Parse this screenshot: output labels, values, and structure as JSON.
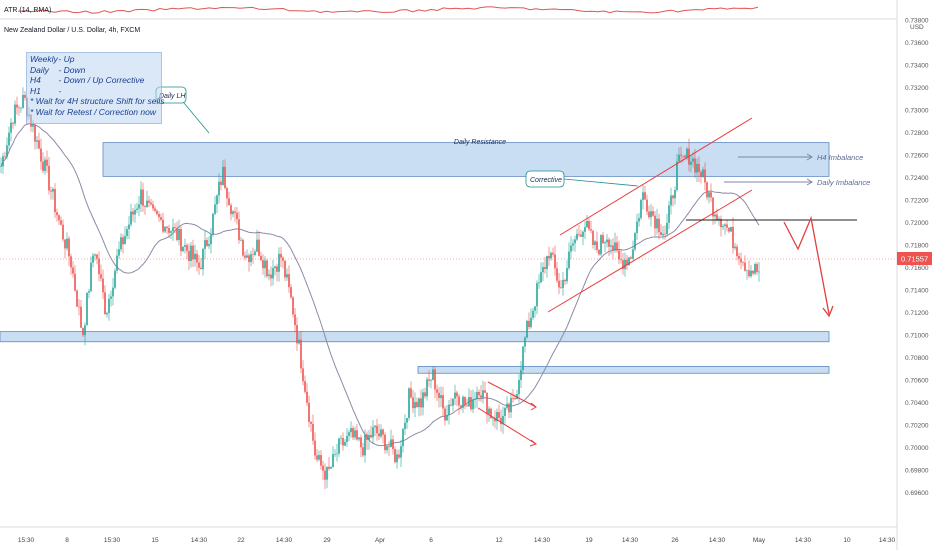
{
  "header": {
    "atr_label": "ATR (14, RMA)",
    "title": "New Zealand Dollar / U.S. Dollar, 4h, FXCM",
    "currency": "USD"
  },
  "notes": {
    "lines": [
      {
        "key": "Weekly",
        "value": "- Up"
      },
      {
        "key": "Daily",
        "value": "- Down"
      },
      {
        "key": "H4",
        "value": "- Down / Up Corrective"
      },
      {
        "key": "H1",
        "value": "-"
      }
    ],
    "bullets": [
      "Wait for 4H structure Shift for sells",
      "Wait for Retest / Correction now"
    ]
  },
  "labels": {
    "daily_lh": "Daily LH",
    "daily_resistance": "Daily Resistance",
    "corrective": "Corrective",
    "h4_imbalance": "H4 Imbalance",
    "daily_imbalance": "Daily Imbalance"
  },
  "colors": {
    "bull": "#26a69a",
    "bear": "#ef5350",
    "zone_fill": "#bbd6f0",
    "zone_stroke": "#5b88c4",
    "ma": "#8f89a8",
    "red_line": "#e83a3a",
    "price_badge": "#ef5350",
    "atr_line": "#e05555",
    "projection": "#e04040"
  },
  "chart_data": {
    "type": "candlestick",
    "title": "New Zealand Dollar / U.S. Dollar, 4h, FXCM",
    "y_axis_unit": "USD",
    "ylim": [
      0.695,
      0.738
    ],
    "y_ticks": [
      "0.73800",
      "0.73600",
      "0.73400",
      "0.73200",
      "0.73000",
      "0.72800",
      "0.72600",
      "0.72400",
      "0.72200",
      "0.72000",
      "0.71800",
      "0.71600",
      "0.71400",
      "0.71200",
      "0.71000",
      "0.70800",
      "0.70600",
      "0.70400",
      "0.70200",
      "0.70000",
      "0.69800",
      "0.69600"
    ],
    "x_ticks": [
      "15:30",
      "8",
      "15:30",
      "15",
      "14:30",
      "22",
      "14:30",
      "29",
      "Apr",
      "6",
      "12",
      "14:30",
      "19",
      "14:30",
      "26",
      "14:30",
      "May",
      "14:30",
      "10",
      "14:30"
    ],
    "current_price": "0.71557",
    "zones": [
      {
        "name": "Daily Resistance",
        "top": 0.7271,
        "bottom": 0.7241
      },
      {
        "name": "support-zone",
        "top": 0.7103,
        "bottom": 0.7094
      },
      {
        "name": "upper-consolidation",
        "top": 0.7072,
        "bottom": 0.7066
      }
    ],
    "path_points": [
      [
        0.725,
        0.7295
      ],
      [
        0.731,
        0.7275
      ],
      [
        0.724,
        0.72
      ],
      [
        0.7165,
        0.71
      ],
      [
        0.718,
        0.712
      ],
      [
        0.717,
        0.72
      ],
      [
        0.7225,
        0.7205
      ],
      [
        0.72,
        0.719
      ],
      [
        0.7175,
        0.716
      ],
      [
        0.7195,
        0.7245
      ],
      [
        0.7205,
        0.717
      ],
      [
        0.718,
        0.7155
      ],
      [
        0.717,
        0.7125
      ],
      [
        0.706,
        0.699
      ],
      [
        0.6975,
        0.7
      ],
      [
        0.701,
        0.7
      ],
      [
        0.7015,
        0.7005
      ],
      [
        0.699,
        0.7045
      ],
      [
        0.704,
        0.7065
      ],
      [
        0.703,
        0.705
      ],
      [
        0.7035,
        0.7055
      ],
      [
        0.703,
        0.7025
      ],
      [
        0.704,
        0.71
      ],
      [
        0.714,
        0.7175
      ],
      [
        0.714,
        0.718
      ],
      [
        0.72,
        0.7175
      ],
      [
        0.719,
        0.7165
      ],
      [
        0.717,
        0.7225
      ],
      [
        0.7205,
        0.719
      ],
      [
        0.725,
        0.726
      ],
      [
        0.7245,
        0.7215
      ],
      [
        0.72,
        0.718
      ],
      [
        0.716,
        0.7156
      ]
    ],
    "projection": [
      [
        0.7176,
        0.7189
      ],
      [
        0.7175,
        0.7105
      ]
    ],
    "atr_series_note": "ATR (14, RMA) line shown in top pane"
  }
}
